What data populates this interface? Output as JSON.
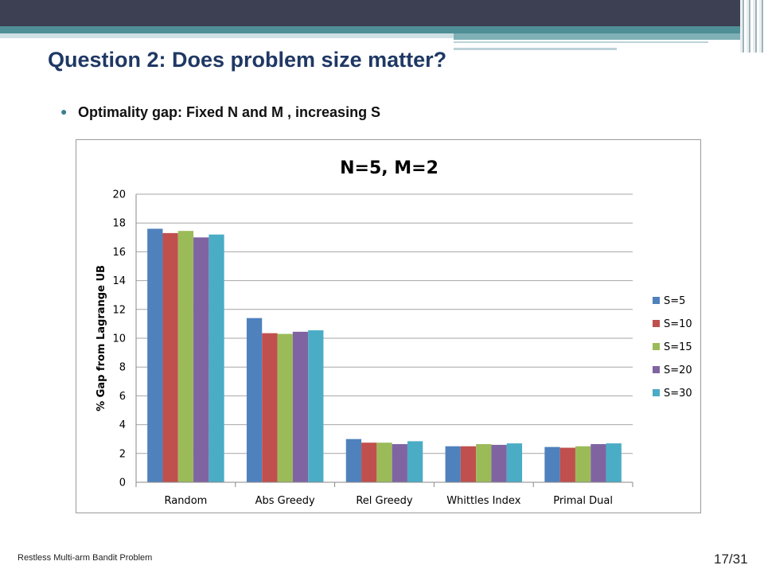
{
  "slide": {
    "title": "Question 2: Does problem size matter?",
    "bullet": "Optimality gap: Fixed N and M , increasing S",
    "footer": "Restless Multi-arm Bandit Problem",
    "page_number": "17/31"
  },
  "theme": {
    "top_bar_dark": "#3d3f52",
    "top_bar_teal": "#4f8f96",
    "top_bar_light": "#cfe0e4",
    "title_color": "#1f3864",
    "bullet_color": "#3e7d94"
  },
  "chart_data": {
    "type": "bar",
    "title": "N=5, M=2",
    "xlabel": "",
    "ylabel": "% Gap from Lagrange UB",
    "ylim": [
      0,
      20
    ],
    "yticks": [
      0,
      2,
      4,
      6,
      8,
      10,
      12,
      14,
      16,
      18,
      20
    ],
    "grid": true,
    "legend_position": "right",
    "categories": [
      "Random",
      "Abs Greedy",
      "Rel Greedy",
      "Whittles Index",
      "Primal Dual"
    ],
    "series": [
      {
        "name": "S=5",
        "color": "#4f81bd",
        "values": [
          17.6,
          11.4,
          3.0,
          2.5,
          2.45
        ]
      },
      {
        "name": "S=10",
        "color": "#c0504d",
        "values": [
          17.3,
          10.35,
          2.75,
          2.5,
          2.4
        ]
      },
      {
        "name": "S=15",
        "color": "#9bbb59",
        "values": [
          17.45,
          10.3,
          2.75,
          2.65,
          2.5
        ]
      },
      {
        "name": "S=20",
        "color": "#8064a2",
        "values": [
          17.0,
          10.45,
          2.65,
          2.6,
          2.65
        ]
      },
      {
        "name": "S=30",
        "color": "#4bacc6",
        "values": [
          17.2,
          10.55,
          2.85,
          2.7,
          2.7
        ]
      }
    ]
  }
}
